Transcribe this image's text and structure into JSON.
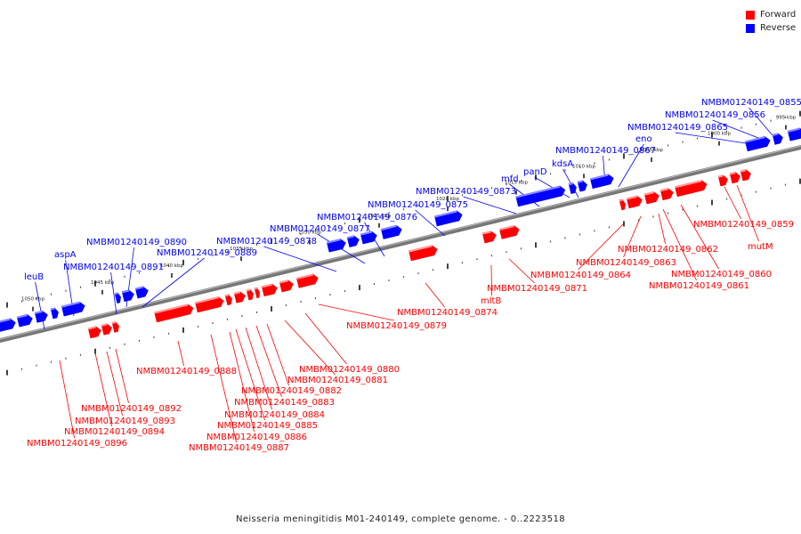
{
  "legend": {
    "forward_label": "Forward",
    "reverse_label": "Reverse",
    "forward_color": "#ff0000",
    "reverse_color": "#0000ff"
  },
  "caption": "Neisseria meningitidis M01-240149, complete genome. - 0..2223518",
  "scale_labels": [
    "995 kbp",
    "1000 kbp",
    "1005 kbp",
    "1010 kbp",
    "1015 kbp",
    "1020 kbp",
    "1025 kbp",
    "1030 kbp",
    "1035 kbp",
    "1040 kbp",
    "1045 kbp",
    "1050 kbp"
  ],
  "reverse_labels": [
    "NMBM01240149_0855",
    "NMBM01240149_0856",
    "NMBM01240149_0865",
    "eno",
    "NMBM01240149_0867",
    "kdsA",
    "panD",
    "mfd",
    "NMBM01240149_0873",
    "NMBM01240149_0875",
    "NMBM01240149_0876",
    "NMBM01240149_0877",
    "NMBM01240149_0878",
    "NMBM01240149_0890",
    "NMBM01240149_0889",
    "aspA",
    "NMBM01240149_0891",
    "leuB"
  ],
  "forward_labels": [
    "NMBM01240149_0859",
    "mutM",
    "NMBM01240149_0862",
    "NMBM01240149_0863",
    "NMBM01240149_0860",
    "NMBM01240149_0864",
    "NMBM01240149_0861",
    "NMBM01240149_0871",
    "mltB",
    "NMBM01240149_0874",
    "NMBM01240149_0879",
    "NMBM01240149_0880",
    "NMBM01240149_0888",
    "NMBM01240149_0881",
    "NMBM01240149_0882",
    "NMBM01240149_0883",
    "NMBM01240149_0884",
    "NMBM01240149_0885",
    "NMBM01240149_0886",
    "NMBM01240149_0887",
    "NMBM01240149_0892",
    "NMBM01240149_0893",
    "NMBM01240149_0894",
    "NMBM01240149_0896"
  ]
}
